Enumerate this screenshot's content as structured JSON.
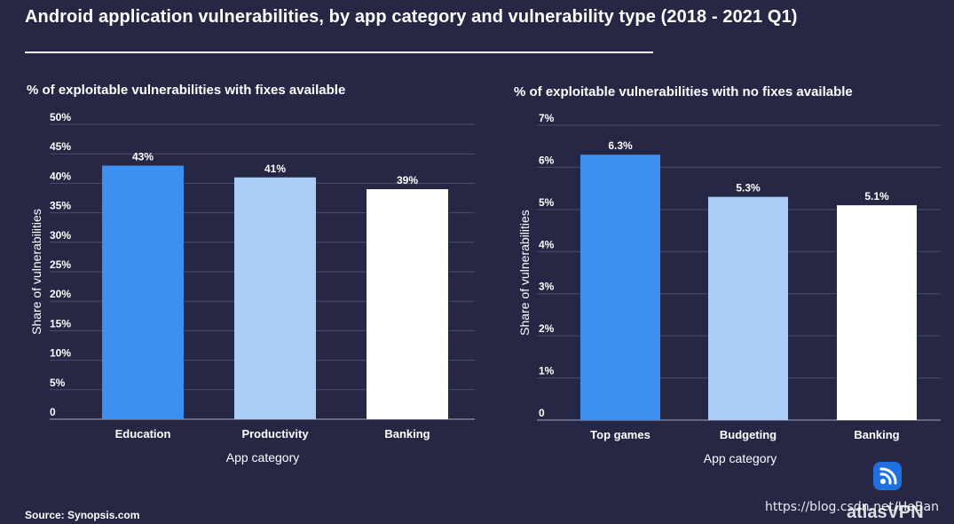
{
  "header": {
    "title": "Android application vulnerabilities, by app category and vulnerability type (2018 - 2021 Q1)"
  },
  "colors": {
    "background": "#252745",
    "bar_blue": "#3d8ff0",
    "bar_light_blue": "#a9cdf5",
    "bar_white": "#ffffff",
    "gridline": "#4a4d6e"
  },
  "chart_data": [
    {
      "type": "bar",
      "title": "% of exploitable vulnerabilities with fixes available",
      "xlabel": "App category",
      "ylabel": "Share of vulnerabilities",
      "categories": [
        "Education",
        "Productivity",
        "Banking"
      ],
      "values": [
        43,
        41,
        39
      ],
      "value_labels": [
        "43%",
        "41%",
        "39%"
      ],
      "ylim": [
        0,
        50
      ],
      "yticks": [
        0,
        5,
        10,
        15,
        20,
        25,
        30,
        35,
        40,
        45,
        50
      ],
      "ytick_labels": [
        "0",
        "5%",
        "10%",
        "15%",
        "20%",
        "25%",
        "30%",
        "35%",
        "40%",
        "45%",
        "50%"
      ],
      "bar_colors": [
        "#3d8ff0",
        "#a9cdf5",
        "#ffffff"
      ],
      "grid": true
    },
    {
      "type": "bar",
      "title": "% of exploitable vulnerabilities with no fixes available",
      "xlabel": "App category",
      "ylabel": "Share of vulnerabilities",
      "categories": [
        "Top games",
        "Budgeting",
        "Banking"
      ],
      "values": [
        6.3,
        5.3,
        5.1
      ],
      "value_labels": [
        "6.3%",
        "5.3%",
        "5.1%"
      ],
      "ylim": [
        0,
        7
      ],
      "yticks": [
        0,
        1,
        2,
        3,
        4,
        5,
        6,
        7
      ],
      "ytick_labels": [
        "0",
        "1%",
        "2%",
        "3%",
        "4%",
        "5%",
        "6%",
        "7%"
      ],
      "bar_colors": [
        "#3d8ff0",
        "#a9cdf5",
        "#ffffff"
      ],
      "grid": true
    }
  ],
  "footer": {
    "source": "Source: Synopsis.com",
    "brand": "atlasVPN",
    "watermark": "https://blog.csdn.net/HeBan"
  },
  "brand_icon": "atlasvpn-signal-icon"
}
